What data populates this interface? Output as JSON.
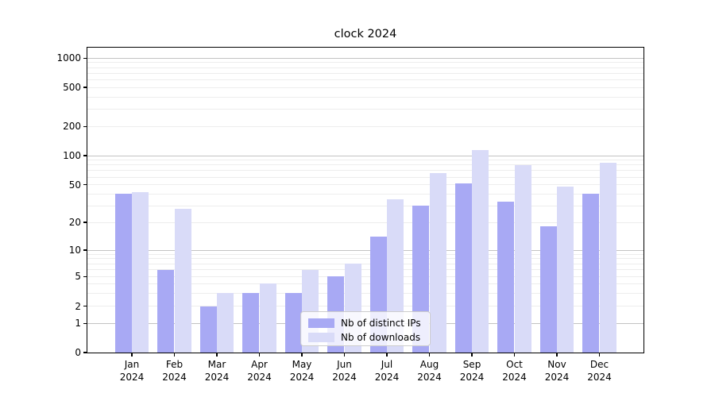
{
  "chart_data": {
    "type": "bar",
    "title": "clock 2024",
    "x": [
      "Jan",
      "Feb",
      "Mar",
      "Apr",
      "May",
      "Jun",
      "Jul",
      "Aug",
      "Sep",
      "Oct",
      "Nov",
      "Dec"
    ],
    "x_year": "2024",
    "series": [
      {
        "name": "Nb of distinct IPs",
        "color": "#a8a9f4",
        "values": [
          40,
          6,
          2,
          3,
          3,
          5,
          14,
          30,
          52,
          33,
          18,
          40
        ]
      },
      {
        "name": "Nb of downloads",
        "color": "#d9dbf8",
        "values": [
          42,
          28,
          3,
          4,
          6,
          7,
          35,
          66,
          115,
          80,
          48,
          85
        ]
      }
    ],
    "y_axis": {
      "scale": "log-like (compressed near zero, 1-2-5 tick pattern)",
      "tick_labels": [
        "0",
        "1",
        "2",
        "5",
        "10",
        "20",
        "50",
        "100",
        "200",
        "500",
        "1000"
      ],
      "tick_values": [
        0,
        1,
        2,
        5,
        10,
        20,
        50,
        100,
        200,
        500,
        1000
      ],
      "minor_values": [
        3,
        4,
        6,
        7,
        8,
        9,
        30,
        40,
        60,
        70,
        80,
        90,
        300,
        400,
        600,
        700,
        800,
        900
      ],
      "ylim": [
        0,
        1000
      ]
    },
    "grid": "horizontal, major and minor",
    "legend_position": "lower center"
  },
  "colors": {
    "bar_distinct_ips": "#a8a9f4",
    "bar_downloads": "#d9dbf8",
    "grid_major": "#c3c3c3",
    "grid_minor": "#ededed",
    "spine": "#000000",
    "background": "#ffffff"
  }
}
